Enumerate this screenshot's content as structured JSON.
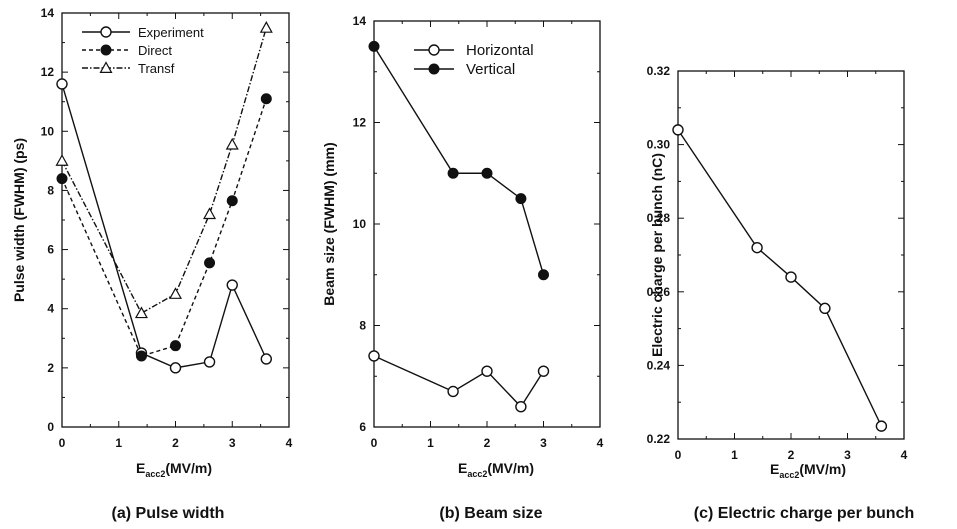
{
  "chart_data": [
    {
      "type": "line",
      "caption": "(a) Pulse width",
      "xlabel_main": "E",
      "xlabel_sub": "acc2",
      "xlabel_unit": "(MV/m)",
      "ylabel": "Pulse width (FWHM) (ps)",
      "xlim": [
        0,
        4
      ],
      "ylim": [
        0,
        14
      ],
      "xticks": [
        "0",
        "1",
        "2",
        "3",
        "4"
      ],
      "yticks": [
        "0",
        "2",
        "4",
        "6",
        "8",
        "10",
        "12",
        "14"
      ],
      "legend_position": "top-left",
      "series": [
        {
          "name": "Experiment",
          "marker": "open-circle",
          "line": "solid",
          "x": [
            0,
            1.4,
            2.0,
            2.6,
            3.0,
            3.6
          ],
          "y": [
            11.6,
            2.5,
            2.0,
            2.2,
            4.8,
            2.3
          ]
        },
        {
          "name": "Direct",
          "marker": "filled-circle",
          "line": "dashed",
          "x": [
            0,
            1.4,
            2.0,
            2.6,
            3.0,
            3.6
          ],
          "y": [
            8.4,
            2.4,
            2.75,
            5.55,
            7.65,
            11.1
          ]
        },
        {
          "name": "Transf",
          "marker": "open-triangle",
          "line": "dashdot",
          "x": [
            0,
            1.4,
            2.0,
            2.6,
            3.0,
            3.6
          ],
          "y": [
            9.0,
            3.85,
            4.5,
            7.2,
            9.55,
            13.5
          ]
        }
      ]
    },
    {
      "type": "line",
      "caption": "(b) Beam size",
      "xlabel_main": "E",
      "xlabel_sub": "acc2",
      "xlabel_unit": "(MV/m)",
      "ylabel": "Beam size (FWHM) (mm)",
      "xlim": [
        0,
        4
      ],
      "ylim": [
        6,
        14
      ],
      "xticks": [
        "0",
        "1",
        "2",
        "3",
        "4"
      ],
      "yticks": [
        "6",
        "8",
        "10",
        "12",
        "14"
      ],
      "legend_position": "top-right",
      "series": [
        {
          "name": "Horizontal",
          "marker": "open-circle",
          "line": "solid",
          "x": [
            0,
            1.4,
            2.0,
            2.6,
            3.0
          ],
          "y": [
            7.4,
            6.7,
            7.1,
            6.4,
            7.1
          ]
        },
        {
          "name": "Vertical",
          "marker": "filled-circle",
          "line": "solid",
          "x": [
            0,
            1.4,
            2.0,
            2.6,
            3.0
          ],
          "y": [
            13.5,
            11.0,
            11.0,
            10.5,
            9.0
          ]
        }
      ]
    },
    {
      "type": "line",
      "caption": "(c) Electric charge per bunch",
      "xlabel_main": "E",
      "xlabel_sub": "acc2",
      "xlabel_unit": "(MV/m)",
      "ylabel": "Electric charge per bunch (nC)",
      "xlim": [
        0,
        4
      ],
      "ylim": [
        0.22,
        0.32
      ],
      "xticks": [
        "0",
        "1",
        "2",
        "3",
        "4"
      ],
      "yticks": [
        "0.22",
        "0.24",
        "0.26",
        "0.28",
        "0.30",
        "0.32"
      ],
      "legend_position": "none",
      "series": [
        {
          "marker": "open-circle",
          "line": "solid",
          "x": [
            0,
            1.4,
            2.0,
            2.6,
            3.6
          ],
          "y": [
            0.304,
            0.272,
            0.264,
            0.2555,
            0.2235
          ]
        }
      ]
    }
  ]
}
